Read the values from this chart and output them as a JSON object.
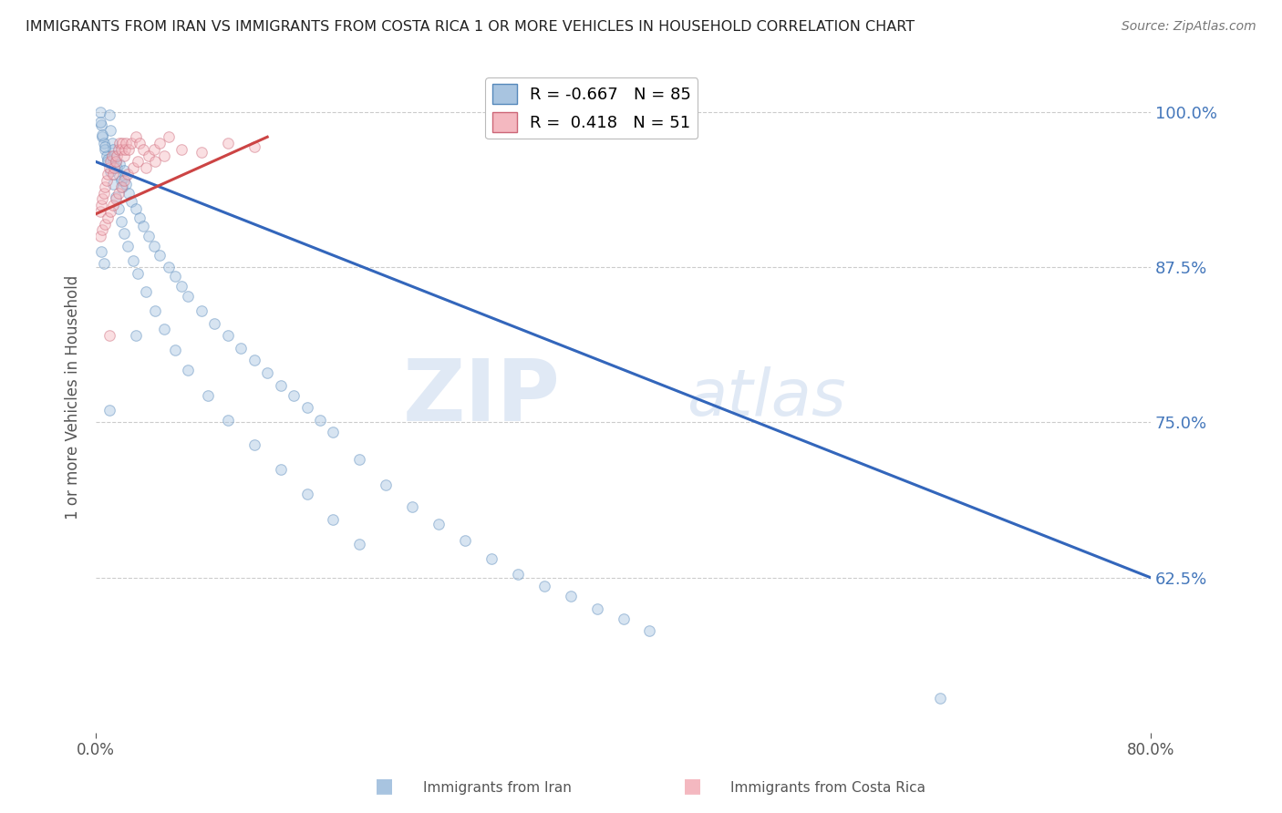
{
  "title": "IMMIGRANTS FROM IRAN VS IMMIGRANTS FROM COSTA RICA 1 OR MORE VEHICLES IN HOUSEHOLD CORRELATION CHART",
  "source": "Source: ZipAtlas.com",
  "ylabel": "1 or more Vehicles in Household",
  "xlim": [
    0.0,
    0.8
  ],
  "ylim": [
    0.5,
    1.04
  ],
  "yticks": [
    0.625,
    0.75,
    0.875,
    1.0
  ],
  "xticks_show": [
    0.0,
    0.8
  ],
  "iran_R": -0.667,
  "iran_N": 85,
  "costa_rica_R": 0.418,
  "costa_rica_N": 51,
  "iran_color": "#A8C4E0",
  "iran_edge_color": "#5588BB",
  "costa_rica_color": "#F4B8C0",
  "costa_rica_edge_color": "#CC6677",
  "iran_line_color": "#3366BB",
  "costa_rica_line_color": "#CC4444",
  "iran_line_x": [
    0.0,
    0.8
  ],
  "iran_line_y": [
    0.96,
    0.625
  ],
  "costa_rica_line_x": [
    0.0,
    0.13
  ],
  "costa_rica_line_y": [
    0.918,
    0.98
  ],
  "iran_scatter_x": [
    0.003,
    0.004,
    0.005,
    0.006,
    0.007,
    0.008,
    0.009,
    0.01,
    0.011,
    0.012,
    0.013,
    0.014,
    0.015,
    0.016,
    0.017,
    0.018,
    0.019,
    0.02,
    0.021,
    0.022,
    0.023,
    0.025,
    0.027,
    0.03,
    0.033,
    0.036,
    0.04,
    0.044,
    0.048,
    0.055,
    0.06,
    0.065,
    0.07,
    0.08,
    0.09,
    0.1,
    0.11,
    0.12,
    0.13,
    0.14,
    0.15,
    0.16,
    0.17,
    0.18,
    0.2,
    0.22,
    0.24,
    0.26,
    0.28,
    0.3,
    0.32,
    0.34,
    0.36,
    0.38,
    0.4,
    0.42,
    0.003,
    0.005,
    0.007,
    0.009,
    0.011,
    0.013,
    0.015,
    0.017,
    0.019,
    0.021,
    0.024,
    0.028,
    0.032,
    0.038,
    0.045,
    0.052,
    0.06,
    0.07,
    0.085,
    0.1,
    0.12,
    0.14,
    0.16,
    0.18,
    0.2,
    0.004,
    0.006,
    0.01,
    0.03,
    0.64
  ],
  "iran_scatter_y": [
    1.0,
    0.99,
    0.98,
    0.975,
    0.97,
    0.965,
    0.96,
    0.998,
    0.985,
    0.975,
    0.97,
    0.965,
    0.96,
    0.955,
    0.95,
    0.958,
    0.945,
    0.94,
    0.953,
    0.948,
    0.942,
    0.935,
    0.928,
    0.922,
    0.915,
    0.908,
    0.9,
    0.892,
    0.885,
    0.875,
    0.868,
    0.86,
    0.852,
    0.84,
    0.83,
    0.82,
    0.81,
    0.8,
    0.79,
    0.78,
    0.772,
    0.762,
    0.752,
    0.742,
    0.72,
    0.7,
    0.682,
    0.668,
    0.655,
    0.64,
    0.628,
    0.618,
    0.61,
    0.6,
    0.592,
    0.582,
    0.992,
    0.982,
    0.972,
    0.962,
    0.952,
    0.942,
    0.932,
    0.922,
    0.912,
    0.902,
    0.892,
    0.88,
    0.87,
    0.855,
    0.84,
    0.825,
    0.808,
    0.792,
    0.772,
    0.752,
    0.732,
    0.712,
    0.692,
    0.672,
    0.652,
    0.888,
    0.878,
    0.76,
    0.82,
    0.528
  ],
  "costa_rica_scatter_x": [
    0.003,
    0.004,
    0.005,
    0.006,
    0.007,
    0.008,
    0.009,
    0.01,
    0.011,
    0.012,
    0.013,
    0.014,
    0.015,
    0.016,
    0.017,
    0.018,
    0.019,
    0.02,
    0.021,
    0.022,
    0.023,
    0.025,
    0.027,
    0.03,
    0.033,
    0.036,
    0.04,
    0.044,
    0.048,
    0.055,
    0.003,
    0.005,
    0.007,
    0.009,
    0.011,
    0.013,
    0.015,
    0.017,
    0.019,
    0.021,
    0.024,
    0.028,
    0.032,
    0.038,
    0.045,
    0.052,
    0.065,
    0.08,
    0.1,
    0.12,
    0.01
  ],
  "costa_rica_scatter_y": [
    0.92,
    0.925,
    0.93,
    0.935,
    0.94,
    0.945,
    0.95,
    0.955,
    0.96,
    0.965,
    0.95,
    0.955,
    0.96,
    0.965,
    0.97,
    0.975,
    0.97,
    0.975,
    0.965,
    0.97,
    0.975,
    0.97,
    0.975,
    0.98,
    0.975,
    0.97,
    0.965,
    0.97,
    0.975,
    0.98,
    0.9,
    0.905,
    0.91,
    0.915,
    0.92,
    0.925,
    0.93,
    0.935,
    0.94,
    0.945,
    0.95,
    0.955,
    0.96,
    0.955,
    0.96,
    0.965,
    0.97,
    0.968,
    0.975,
    0.972,
    0.82
  ],
  "watermark_zip": "ZIP",
  "watermark_atlas": "atlas",
  "legend_iran_label": "Immigrants from Iran",
  "legend_costa_rica_label": "Immigrants from Costa Rica",
  "background_color": "#FFFFFF",
  "grid_color": "#CCCCCC",
  "title_color": "#222222",
  "axis_label_color": "#555555",
  "right_axis_color": "#4477BB",
  "scatter_size": 70,
  "scatter_alpha": 0.45,
  "scatter_linewidth": 0.8
}
